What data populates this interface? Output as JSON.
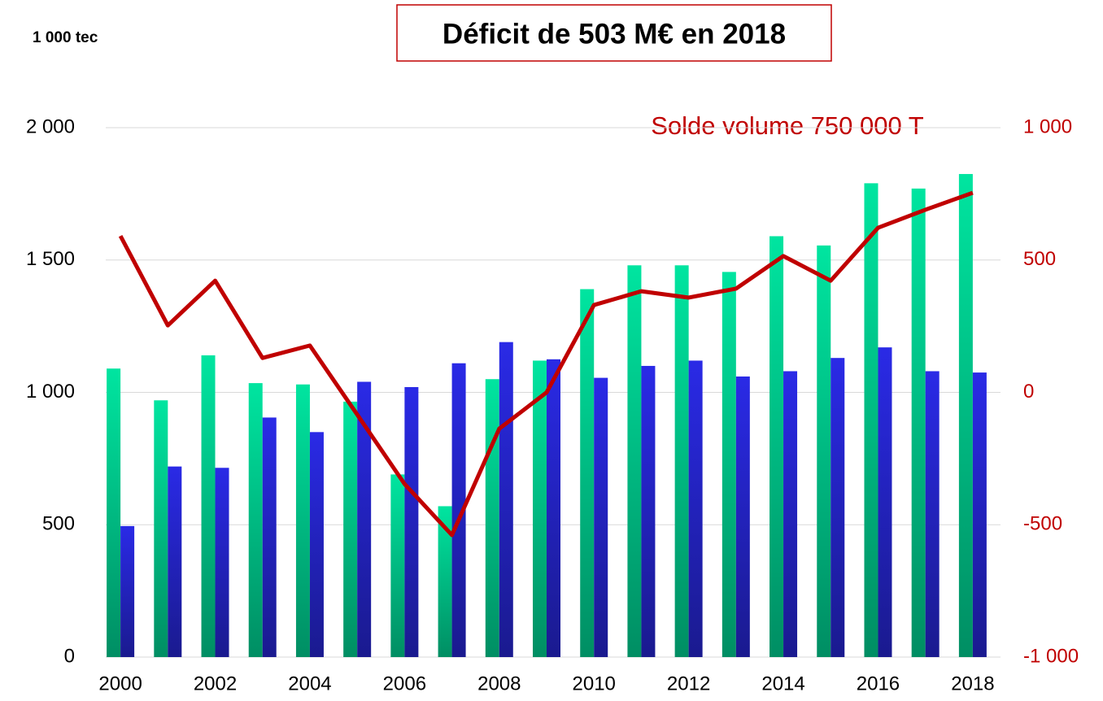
{
  "chart_data": {
    "type": "bar",
    "title": "Déficit de 503 M€ en 2018",
    "y_unit_label": "1 000 tec",
    "annotation": "Solde volume 750 000 T",
    "categories": [
      "2000",
      null,
      "2002",
      null,
      "2004",
      null,
      "2006",
      null,
      "2008",
      null,
      "2010",
      null,
      "2012",
      null,
      "2014",
      null,
      "2016",
      null,
      "2018"
    ],
    "series": [
      {
        "type": "bar",
        "color": "#00e5a0",
        "values": [
          1090,
          970,
          1140,
          1035,
          1030,
          965,
          690,
          570,
          1050,
          1120,
          1390,
          1480,
          1480,
          1455,
          1590,
          1555,
          1790,
          1770,
          1825
        ]
      },
      {
        "type": "bar",
        "color": "#2a2ae6",
        "values": [
          495,
          720,
          715,
          905,
          850,
          1040,
          1020,
          1110,
          1190,
          1125,
          1055,
          1100,
          1120,
          1060,
          1080,
          1130,
          1170,
          1080,
          1075
        ]
      },
      {
        "type": "line",
        "axis": "y2",
        "color": "#c00000",
        "values": [
          591,
          253,
          422,
          130,
          177,
          -84,
          -346,
          -539,
          -137,
          0,
          330,
          382,
          358,
          392,
          515,
          422,
          622,
          690,
          754
        ]
      }
    ],
    "ylim": [
      0,
      2000
    ],
    "yticks": [
      0,
      500,
      {
        "value": 1000,
        "label": "1 000"
      },
      {
        "value": 1500,
        "label": "1 500"
      },
      {
        "value": 2000,
        "label": "2 000"
      }
    ],
    "y2lim": [
      -1000,
      1000
    ],
    "y2ticks": [
      {
        "value": -1000,
        "label": "-1 000"
      },
      -500,
      0,
      500,
      {
        "value": 1000,
        "label": "1 000"
      }
    ],
    "y2_color": "#c00000",
    "grid": true
  }
}
